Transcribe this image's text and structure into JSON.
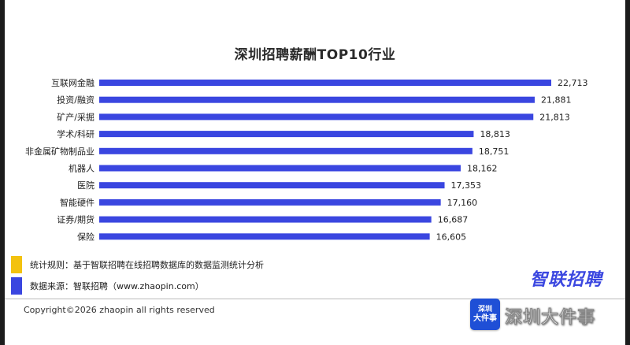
{
  "chart_data": {
    "type": "bar",
    "orientation": "horizontal",
    "title": "深圳招聘薪酬TOP10行业",
    "categories": [
      "互联网金融",
      "投资/融资",
      "矿产/采掘",
      "学术/科研",
      "非金属矿物制品业",
      "机器人",
      "医院",
      "智能硬件",
      "证券/期货",
      "保险"
    ],
    "values": [
      22713,
      21881,
      21813,
      18813,
      18751,
      18162,
      17353,
      17160,
      16687,
      16605
    ],
    "value_labels": [
      "22,713",
      "21,881",
      "21,813",
      "18,813",
      "18,751",
      "18,162",
      "17,353",
      "17,160",
      "16,687",
      "16,605"
    ],
    "xlim": [
      0,
      22713
    ],
    "grid": false,
    "bar_color": "#3a46e0"
  },
  "legend": {
    "rule": {
      "color": "#f3c20f",
      "text": "统计规则：基于智联招聘在线招聘数据库的数据监测统计分析"
    },
    "source": {
      "color": "#3a46e0",
      "text": "数据来源：智联招聘（www.zhaopin.com）"
    }
  },
  "brand": {
    "logo": "智联招聘"
  },
  "footer": {
    "copyright": "Copyright©2026 zhaopin all rights reserved"
  },
  "watermark": {
    "badge_line1": "深圳",
    "badge_line2": "大件事",
    "badge_line3": "",
    "text": "深圳大件事"
  }
}
